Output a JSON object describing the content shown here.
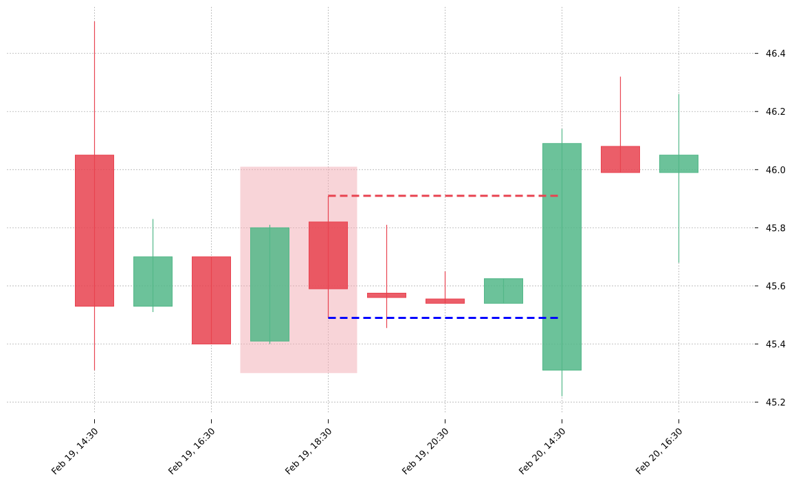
{
  "chart_data": {
    "type": "candlestick",
    "title": "",
    "xlabel": "",
    "ylabel": "",
    "ylim": [
      45.16,
      46.56
    ],
    "y_ticks": [
      45.2,
      45.4,
      45.6,
      45.8,
      46.0,
      46.2,
      46.4
    ],
    "y_axis_side": "right",
    "grid": true,
    "x_tick_labels": [
      {
        "label": "Feb 19, 14:30",
        "index": 0
      },
      {
        "label": "Feb 19, 16:30",
        "index": 2
      },
      {
        "label": "Feb 19, 18:30",
        "index": 4
      },
      {
        "label": "Feb 19, 20:30",
        "index": 6
      },
      {
        "label": "Feb 20, 14:30",
        "index": 8
      },
      {
        "label": "Feb 20, 16:30",
        "index": 10
      }
    ],
    "candles": [
      {
        "open": 46.05,
        "high": 46.51,
        "low": 45.31,
        "close": 45.53
      },
      {
        "open": 45.53,
        "high": 45.83,
        "low": 45.51,
        "close": 45.7
      },
      {
        "open": 45.7,
        "high": 45.7,
        "low": 45.4,
        "close": 45.4
      },
      {
        "open": 45.41,
        "high": 45.81,
        "low": 45.4,
        "close": 45.8
      },
      {
        "open": 45.82,
        "high": 45.91,
        "low": 45.49,
        "close": 45.59
      },
      {
        "open": 45.575,
        "high": 45.81,
        "low": 45.455,
        "close": 45.56
      },
      {
        "open": 45.555,
        "high": 45.65,
        "low": 45.54,
        "close": 45.54
      },
      {
        "open": 45.54,
        "high": 45.625,
        "low": 45.54,
        "close": 45.625
      },
      {
        "open": 45.31,
        "high": 46.14,
        "low": 45.22,
        "close": 46.09
      },
      {
        "open": 46.08,
        "high": 46.32,
        "low": 45.99,
        "close": 45.99
      },
      {
        "open": 45.99,
        "high": 46.26,
        "low": 45.68,
        "close": 46.05
      }
    ],
    "highlight_zone": {
      "from_index": 3,
      "to_index": 4,
      "low": 45.3,
      "high": 46.01,
      "color": "#f2a9b1"
    },
    "levels": [
      {
        "value": 45.91,
        "from_index": 4,
        "to_index": 8,
        "color": "#e8424f",
        "style": "dashed"
      },
      {
        "value": 45.49,
        "from_index": 4,
        "to_index": 8,
        "color": "#0000ff",
        "style": "dashed"
      }
    ],
    "colors": {
      "up": "#52b788",
      "down": "#e8424f",
      "grid": "#b0b0b0"
    }
  }
}
